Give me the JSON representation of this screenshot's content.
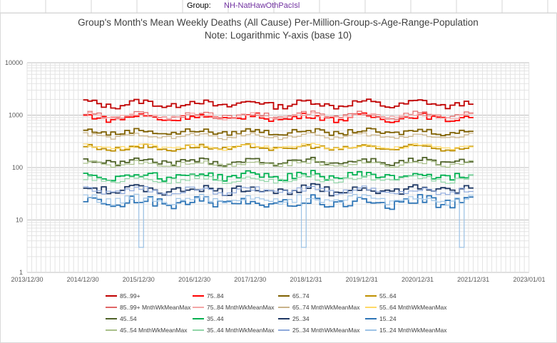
{
  "header": {
    "group_label": "Group:",
    "group_value": "NH-NatHawOthPacIsl"
  },
  "chart_data": {
    "type": "line",
    "title": "Group's Month's Mean Weekly Deaths (All Cause) Per-Million-Group-s-Age-Range-Population",
    "subtitle": "Note: Logarithmic Y-axis (base 10)",
    "yscale": "log10",
    "ylim": [
      1,
      10000
    ],
    "yticks": [
      "1",
      "10",
      "100",
      "1000",
      "10000"
    ],
    "xlim": [
      "2013-12-30",
      "2023-01-01"
    ],
    "xticks": [
      "2013/12/30",
      "2014/12/30",
      "2015/12/30",
      "2016/12/30",
      "2017/12/30",
      "2018/12/31",
      "2019/12/31",
      "2020/12/31",
      "2021/12/31",
      "2023/01/01"
    ],
    "x_start": "2015-01",
    "x_end": "2021-12",
    "grid": true,
    "legend_position": "bottom",
    "series": [
      {
        "name": "85..99+",
        "color": "#c00000",
        "base": 1650,
        "amp": 0.12,
        "noise": 0.12,
        "bold": true
      },
      {
        "name": "75..84",
        "color": "#ff0000",
        "base": 900,
        "amp": 0.1,
        "noise": 0.12,
        "bold": true
      },
      {
        "name": "65..74",
        "color": "#7f6000",
        "base": 480,
        "amp": 0.08,
        "noise": 0.1,
        "bold": true
      },
      {
        "name": "55..64",
        "color": "#bf9000",
        "base": 240,
        "amp": 0.08,
        "noise": 0.1,
        "bold": true
      },
      {
        "name": "85..99+ MnthWkMeanMax",
        "color": "#e06666",
        "base": 1000,
        "amp": 0.1,
        "noise": 0.1,
        "bold": false
      },
      {
        "name": "75..84 MnthWkMeanMax",
        "color": "#f4a6a6",
        "base": 960,
        "amp": 0.08,
        "noise": 0.08,
        "bold": false
      },
      {
        "name": "65..74 MnthWkMeanMax",
        "color": "#c9b38a",
        "base": 400,
        "amp": 0.08,
        "noise": 0.08,
        "bold": false
      },
      {
        "name": "55..64 MnthWkMeanMax",
        "color": "#ffd966",
        "base": 250,
        "amp": 0.08,
        "noise": 0.08,
        "bold": false
      },
      {
        "name": "45..54",
        "color": "#4f6228",
        "base": 130,
        "amp": 0.08,
        "noise": 0.12,
        "bold": true
      },
      {
        "name": "35..44",
        "color": "#00b050",
        "base": 70,
        "amp": 0.1,
        "noise": 0.15,
        "bold": true
      },
      {
        "name": "25..34",
        "color": "#1f3864",
        "base": 38,
        "amp": 0.1,
        "noise": 0.18,
        "bold": true
      },
      {
        "name": "15..24",
        "color": "#2e75b6",
        "base": 22,
        "amp": 0.12,
        "noise": 0.22,
        "bold": true
      },
      {
        "name": "45..54 MnthWkMeanMax",
        "color": "#a9c08a",
        "base": 120,
        "amp": 0.08,
        "noise": 0.1,
        "bold": false
      },
      {
        "name": "35..44 MnthWkMeanMax",
        "color": "#92d5a8",
        "base": 60,
        "amp": 0.1,
        "noise": 0.12,
        "bold": false
      },
      {
        "name": "25..34 MnthWkMeanMax",
        "color": "#8ea9db",
        "base": 36,
        "amp": 0.1,
        "noise": 0.12,
        "bold": false
      },
      {
        "name": "15..24 MnthWkMeanMax",
        "color": "#9dc3e6",
        "base": 25,
        "amp": 0.12,
        "noise": 0.15,
        "bold": false
      }
    ]
  }
}
